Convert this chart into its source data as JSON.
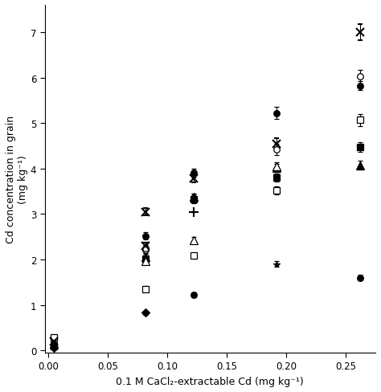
{
  "xlabel": "0.1 M CaCl₂-extractable Cd (mg kg⁻¹)",
  "ylabel": "Cd concentration in grain\n(mg kg⁻¹)",
  "xlim": [
    -0.003,
    0.275
  ],
  "ylim": [
    -0.05,
    7.6
  ],
  "xticks": [
    0,
    0.05,
    0.1,
    0.15,
    0.2,
    0.25
  ],
  "yticks": [
    0,
    1,
    2,
    3,
    4,
    5,
    6,
    7
  ],
  "series": [
    {
      "key": "o_open",
      "points": [
        [
          0.005,
          0.18
        ],
        [
          0.082,
          2.22
        ],
        [
          0.082,
          2.25
        ],
        [
          0.122,
          3.35
        ],
        [
          0.192,
          4.42
        ],
        [
          0.262,
          6.02
        ]
      ],
      "yerr": [
        0.03,
        0.07,
        0.07,
        0.08,
        0.12,
        0.15
      ]
    },
    {
      "key": "o_fill",
      "points": [
        [
          0.005,
          0.12
        ],
        [
          0.082,
          2.52
        ],
        [
          0.122,
          3.9
        ],
        [
          0.122,
          1.22
        ],
        [
          0.192,
          5.22
        ],
        [
          0.262,
          5.82
        ],
        [
          0.262,
          1.6
        ]
      ],
      "yerr": [
        0.02,
        0.08,
        0.09,
        0.05,
        0.13,
        0.1,
        0.06
      ]
    },
    {
      "key": "s_open",
      "points": [
        [
          0.005,
          0.28
        ],
        [
          0.082,
          1.35
        ],
        [
          0.122,
          2.08
        ],
        [
          0.192,
          3.52
        ],
        [
          0.262,
          5.07
        ]
      ],
      "yerr": [
        0.04,
        0.06,
        0.07,
        0.09,
        0.13
      ]
    },
    {
      "key": "s_fill",
      "points": [
        [
          0.005,
          0.1
        ],
        [
          0.082,
          2.02
        ],
        [
          0.122,
          3.32
        ],
        [
          0.192,
          3.8
        ],
        [
          0.262,
          4.47
        ]
      ],
      "yerr": [
        0.02,
        0.07,
        0.08,
        0.09,
        0.11
      ]
    },
    {
      "key": "t_fill",
      "points": [
        [
          0.005,
          0.15
        ],
        [
          0.082,
          2.05
        ],
        [
          0.122,
          3.38
        ],
        [
          0.192,
          4.02
        ],
        [
          0.262,
          4.07
        ]
      ],
      "yerr": [
        0.02,
        0.07,
        0.07,
        0.09,
        0.1
      ]
    },
    {
      "key": "t_open",
      "points": [
        [
          0.082,
          1.97
        ],
        [
          0.122,
          2.43
        ],
        [
          0.192,
          4.05
        ]
      ],
      "yerr": [
        0.05,
        0.07,
        0.09
      ]
    },
    {
      "key": "D_fill",
      "points": [
        [
          0.005,
          0.05
        ],
        [
          0.082,
          0.83
        ]
      ],
      "yerr": [
        0.01,
        0.04
      ]
    },
    {
      "key": "x_mark",
      "points": [
        [
          0.005,
          0.2
        ],
        [
          0.082,
          3.05
        ],
        [
          0.082,
          2.3
        ],
        [
          0.122,
          3.78
        ],
        [
          0.192,
          4.55
        ],
        [
          0.262,
          7.0
        ]
      ],
      "yerr": [
        0.02,
        0.08,
        0.07,
        0.09,
        0.11,
        0.18
      ]
    },
    {
      "key": "plus",
      "points": [
        [
          0.122,
          3.05
        ]
      ],
      "yerr": [
        0.0
      ]
    },
    {
      "key": "star",
      "points": [
        [
          0.192,
          1.9
        ]
      ],
      "yerr": [
        0.06
      ]
    }
  ]
}
